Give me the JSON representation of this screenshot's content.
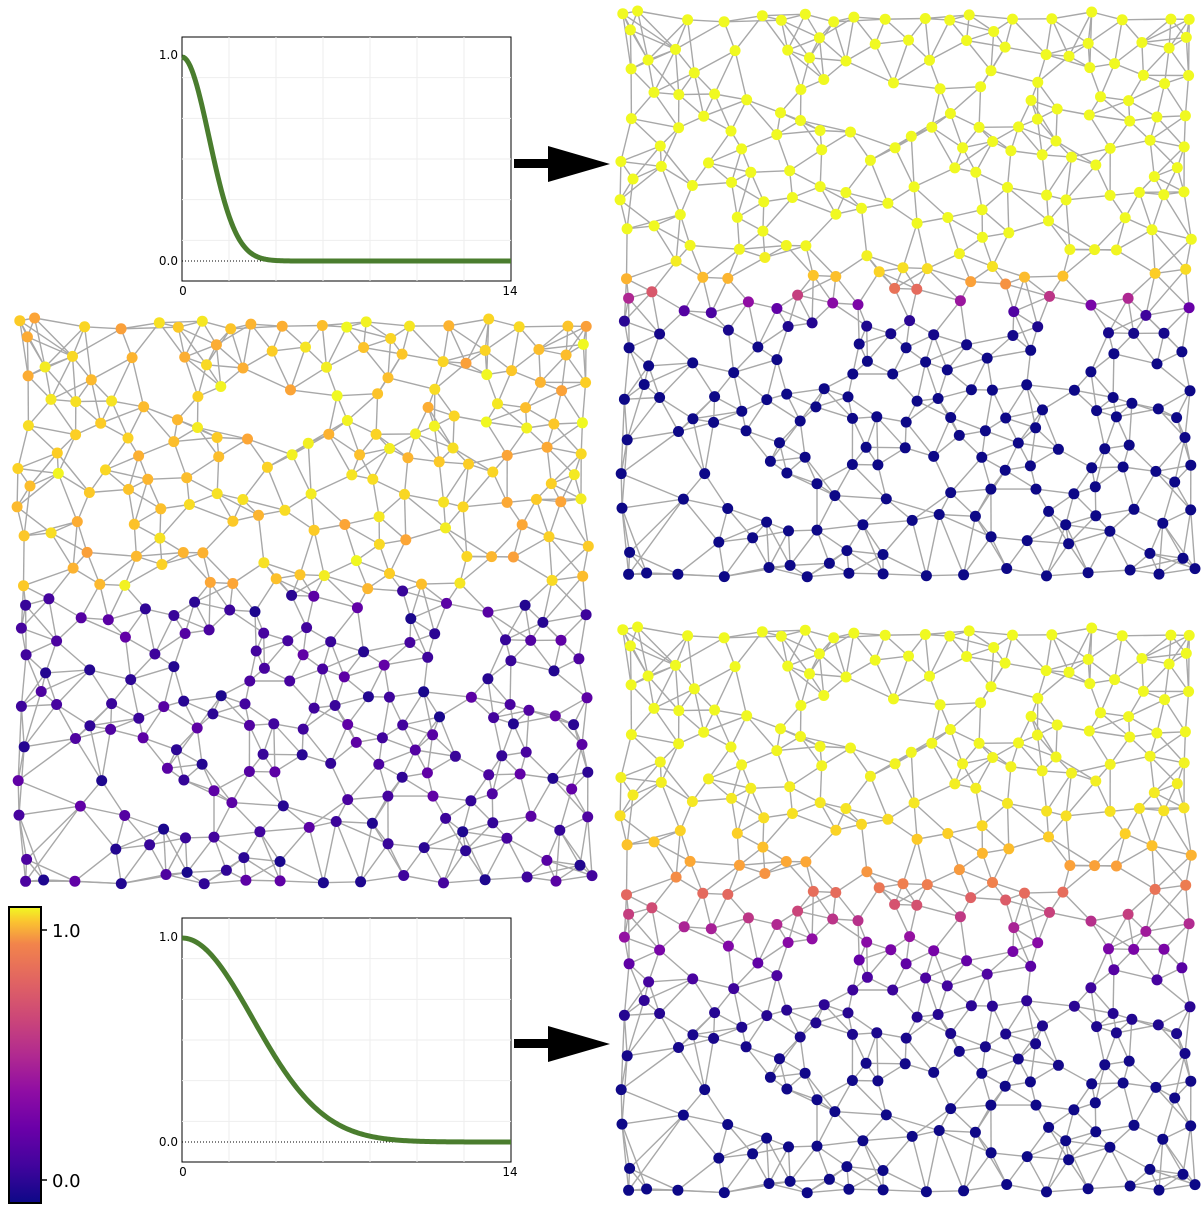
{
  "charts": [
    {
      "id": "kernel_narrow",
      "y_ticks": [
        "1.0",
        "0.0"
      ],
      "x_ticks": [
        "0",
        "14"
      ],
      "xlim": [
        0,
        14
      ],
      "ylim": [
        -0.05,
        1.05
      ],
      "sigma": 1.15,
      "curve_color": "#4a7d2e"
    },
    {
      "id": "kernel_wide",
      "y_ticks": [
        "1.0",
        "0.0"
      ],
      "x_ticks": [
        "0",
        "14"
      ],
      "xlim": [
        0,
        14
      ],
      "ylim": [
        -0.05,
        1.05
      ],
      "sigma": 3.0,
      "curve_color": "#4a7d2e"
    }
  ],
  "colorbar": {
    "colormap": "plasma",
    "ticks": [
      {
        "label": "1.0",
        "value": 1.0
      },
      {
        "label": "0.0",
        "value": 0.0
      }
    ]
  },
  "graphs": [
    {
      "id": "input_signal",
      "boundary": 0.48,
      "blend": 0.05,
      "mode": "noisy"
    },
    {
      "id": "output_narrow",
      "boundary": 0.5,
      "blend": 0.05,
      "mode": "smooth"
    },
    {
      "id": "output_wide",
      "boundary": 0.5,
      "blend": 0.18,
      "mode": "smooth"
    }
  ],
  "colors": {
    "edge": "#a8a8a8",
    "arrow": "#000000",
    "colorbar_frame": "#000000"
  }
}
